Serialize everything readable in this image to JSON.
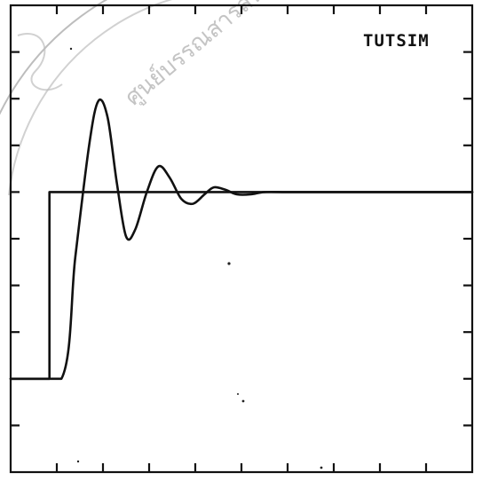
{
  "chart_data": {
    "type": "line",
    "title": "TUTSIM",
    "xlabel": "",
    "ylabel": "",
    "grid": false,
    "xlim": [
      0,
      10
    ],
    "ylim": [
      0,
      10
    ],
    "x_ticks": 10,
    "y_ticks": 10,
    "series": [
      {
        "x": [
          0,
          0.84,
          0.84,
          10
        ],
        "y": [
          2,
          2,
          6,
          6
        ]
      },
      {
        "x": [
          0,
          1.1,
          1.4,
          1.7,
          1.9,
          2.1,
          2.3,
          2.5,
          2.7,
          2.95,
          3.2,
          3.45,
          3.7,
          3.95,
          4.2,
          4.4,
          4.65,
          4.9,
          5.2,
          5.5,
          6.0,
          7.0,
          8.0,
          9.0,
          10.0
        ],
        "y": [
          2,
          2,
          4.6,
          7.0,
          7.95,
          7.6,
          6.2,
          5.05,
          5.2,
          6.0,
          6.55,
          6.3,
          5.85,
          5.75,
          5.95,
          6.1,
          6.05,
          5.95,
          5.95,
          6.0,
          6.0,
          6.0,
          6.0,
          6.0,
          6.0
        ]
      }
    ]
  },
  "watermark_text": "ศูนย์บรรณสารสนเทศ"
}
